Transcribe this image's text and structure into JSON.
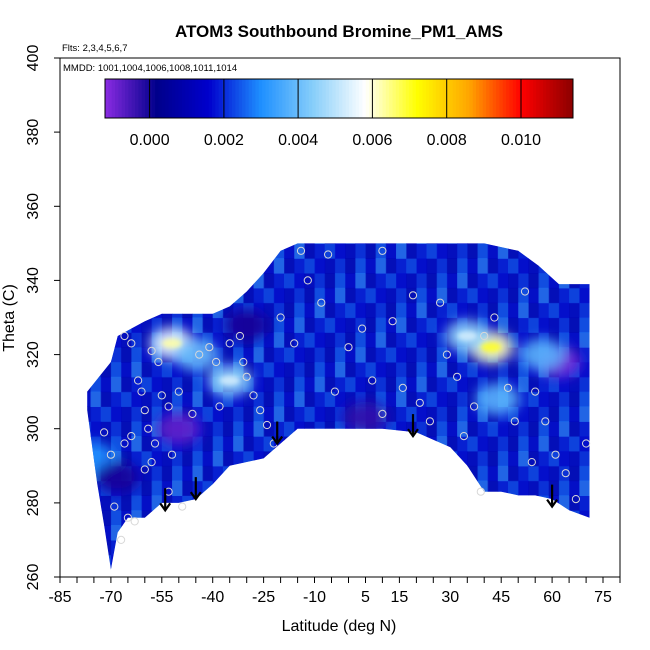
{
  "chart_data": {
    "type": "heatmap",
    "title": "ATOM3 Southbound Bromine_PM1_AMS",
    "subtitle_flights": "Flts: 2,3,4,5,6,7",
    "subtitle_dates": "MMDD: 1001,1004,1006,1008,1011,1014",
    "xlabel": "Latitude (deg N)",
    "ylabel": "Theta (C)",
    "xlim": [
      -85,
      80
    ],
    "ylim": [
      260,
      400
    ],
    "x_ticks": [
      -85,
      -70,
      -55,
      -40,
      -25,
      -10,
      5,
      15,
      30,
      45,
      60,
      75
    ],
    "y_ticks": [
      260,
      280,
      300,
      320,
      340,
      360,
      380,
      400
    ],
    "colorbar": {
      "range": [
        -0.0012,
        0.0114
      ],
      "tick_values": [
        0.0,
        0.002,
        0.004,
        0.006,
        0.008,
        0.01
      ],
      "tick_labels": [
        "0.000",
        "0.002",
        "0.004",
        "0.006",
        "0.008",
        "0.010"
      ],
      "colors": [
        "#8a2be2",
        "#00008b",
        "#0000cd",
        "#1e90ff",
        "#87cefa",
        "#ffffff",
        "#ffff00",
        "#ffa500",
        "#ff0000",
        "#8b0000"
      ]
    },
    "arrows_latitude": [
      -54,
      -45,
      -21,
      19,
      60
    ],
    "surface_boundary": {
      "upper": [
        [
          -77,
          310
        ],
        [
          -70,
          318
        ],
        [
          -68,
          325
        ],
        [
          -60,
          329
        ],
        [
          -55,
          331
        ],
        [
          -48,
          331
        ],
        [
          -40,
          331
        ],
        [
          -35,
          333
        ],
        [
          -30,
          337
        ],
        [
          -25,
          342
        ],
        [
          -20,
          348
        ],
        [
          -15,
          350
        ],
        [
          0,
          350
        ],
        [
          15,
          350
        ],
        [
          25,
          350
        ],
        [
          40,
          350
        ],
        [
          50,
          348
        ],
        [
          56,
          344
        ],
        [
          62,
          339
        ],
        [
          68,
          339
        ],
        [
          71,
          339
        ]
      ],
      "lower": [
        [
          -77,
          305
        ],
        [
          -74,
          285
        ],
        [
          -72,
          274
        ],
        [
          -70,
          262
        ],
        [
          -68,
          272
        ],
        [
          -65,
          276
        ],
        [
          -60,
          276
        ],
        [
          -55,
          280
        ],
        [
          -50,
          280
        ],
        [
          -45,
          281
        ],
        [
          -40,
          285
        ],
        [
          -35,
          290
        ],
        [
          -25,
          292
        ],
        [
          -20,
          296
        ],
        [
          -15,
          300
        ],
        [
          0,
          300
        ],
        [
          10,
          300
        ],
        [
          20,
          299
        ],
        [
          30,
          295
        ],
        [
          35,
          290
        ],
        [
          40,
          283
        ],
        [
          45,
          283
        ],
        [
          50,
          282
        ],
        [
          55,
          282
        ],
        [
          60,
          281
        ],
        [
          65,
          278
        ],
        [
          71,
          276
        ]
      ]
    },
    "anomalies": [
      {
        "lat": -52,
        "theta": 323,
        "value": 0.0055
      },
      {
        "lat": -35,
        "theta": 313,
        "value": 0.0045
      },
      {
        "lat": -45,
        "theta": 320,
        "value": 0.004
      },
      {
        "lat": 42,
        "theta": 322,
        "value": 0.0062
      },
      {
        "lat": 35,
        "theta": 325,
        "value": 0.0045
      },
      {
        "lat": 44,
        "theta": 308,
        "value": 0.0038
      },
      {
        "lat": -50,
        "theta": 300,
        "value": -0.0008
      },
      {
        "lat": -30,
        "theta": 328,
        "value": 0.0
      },
      {
        "lat": 5,
        "theta": 303,
        "value": -0.0003
      },
      {
        "lat": 62,
        "theta": 318,
        "value": -0.001
      },
      {
        "lat": 57,
        "theta": 320,
        "value": 0.0038
      },
      {
        "lat": -75,
        "theta": 292,
        "value": 0.003
      },
      {
        "lat": -68,
        "theta": 287,
        "value": 0.0
      }
    ],
    "observations": [
      {
        "lat": -66,
        "theta": 325
      },
      {
        "lat": -64,
        "theta": 323
      },
      {
        "lat": -58,
        "theta": 321
      },
      {
        "lat": -56,
        "theta": 318
      },
      {
        "lat": -62,
        "theta": 313
      },
      {
        "lat": -61,
        "theta": 310
      },
      {
        "lat": -60,
        "theta": 305
      },
      {
        "lat": -59,
        "theta": 300
      },
      {
        "lat": -64,
        "theta": 298
      },
      {
        "lat": -66,
        "theta": 296
      },
      {
        "lat": -57,
        "theta": 296
      },
      {
        "lat": -55,
        "theta": 309
      },
      {
        "lat": -53,
        "theta": 306
      },
      {
        "lat": -50,
        "theta": 310
      },
      {
        "lat": -46,
        "theta": 304
      },
      {
        "lat": -44,
        "theta": 320
      },
      {
        "lat": -41,
        "theta": 322
      },
      {
        "lat": -39,
        "theta": 318
      },
      {
        "lat": -38,
        "theta": 306
      },
      {
        "lat": -35,
        "theta": 323
      },
      {
        "lat": -32,
        "theta": 325
      },
      {
        "lat": -31,
        "theta": 318
      },
      {
        "lat": -30,
        "theta": 314
      },
      {
        "lat": -28,
        "theta": 309
      },
      {
        "lat": -26,
        "theta": 305
      },
      {
        "lat": -24,
        "theta": 301
      },
      {
        "lat": -22,
        "theta": 296
      },
      {
        "lat": -20,
        "theta": 330
      },
      {
        "lat": -16,
        "theta": 323
      },
      {
        "lat": -12,
        "theta": 340
      },
      {
        "lat": -8,
        "theta": 334
      },
      {
        "lat": -4,
        "theta": 310
      },
      {
        "lat": 0,
        "theta": 322
      },
      {
        "lat": 4,
        "theta": 327
      },
      {
        "lat": 7,
        "theta": 313
      },
      {
        "lat": 10,
        "theta": 304
      },
      {
        "lat": 13,
        "theta": 329
      },
      {
        "lat": 16,
        "theta": 311
      },
      {
        "lat": 19,
        "theta": 336
      },
      {
        "lat": 21,
        "theta": 307
      },
      {
        "lat": 24,
        "theta": 302
      },
      {
        "lat": 27,
        "theta": 334
      },
      {
        "lat": 29,
        "theta": 320
      },
      {
        "lat": 32,
        "theta": 314
      },
      {
        "lat": 34,
        "theta": 298
      },
      {
        "lat": 37,
        "theta": 306
      },
      {
        "lat": 40,
        "theta": 325
      },
      {
        "lat": 43,
        "theta": 330
      },
      {
        "lat": 47,
        "theta": 311
      },
      {
        "lat": 49,
        "theta": 302
      },
      {
        "lat": 52,
        "theta": 337
      },
      {
        "lat": 55,
        "theta": 310
      },
      {
        "lat": 58,
        "theta": 302
      },
      {
        "lat": 61,
        "theta": 293
      },
      {
        "lat": 64,
        "theta": 288
      },
      {
        "lat": 67,
        "theta": 281
      },
      {
        "lat": 70,
        "theta": 296
      },
      {
        "lat": -72,
        "theta": 299
      },
      {
        "lat": -70,
        "theta": 293
      },
      {
        "lat": -69,
        "theta": 279
      },
      {
        "lat": -67,
        "theta": 270
      },
      {
        "lat": -53,
        "theta": 283
      },
      {
        "lat": -49,
        "theta": 279
      },
      {
        "lat": -60,
        "theta": 289
      },
      {
        "lat": -58,
        "theta": 291
      },
      {
        "lat": -52,
        "theta": 293
      },
      {
        "lat": -14,
        "theta": 348
      },
      {
        "lat": -6,
        "theta": 347
      },
      {
        "lat": 10,
        "theta": 348
      },
      {
        "lat": 39,
        "theta": 283
      },
      {
        "lat": 54,
        "theta": 291
      },
      {
        "lat": -65,
        "theta": 276
      },
      {
        "lat": -63,
        "theta": 275
      }
    ]
  }
}
